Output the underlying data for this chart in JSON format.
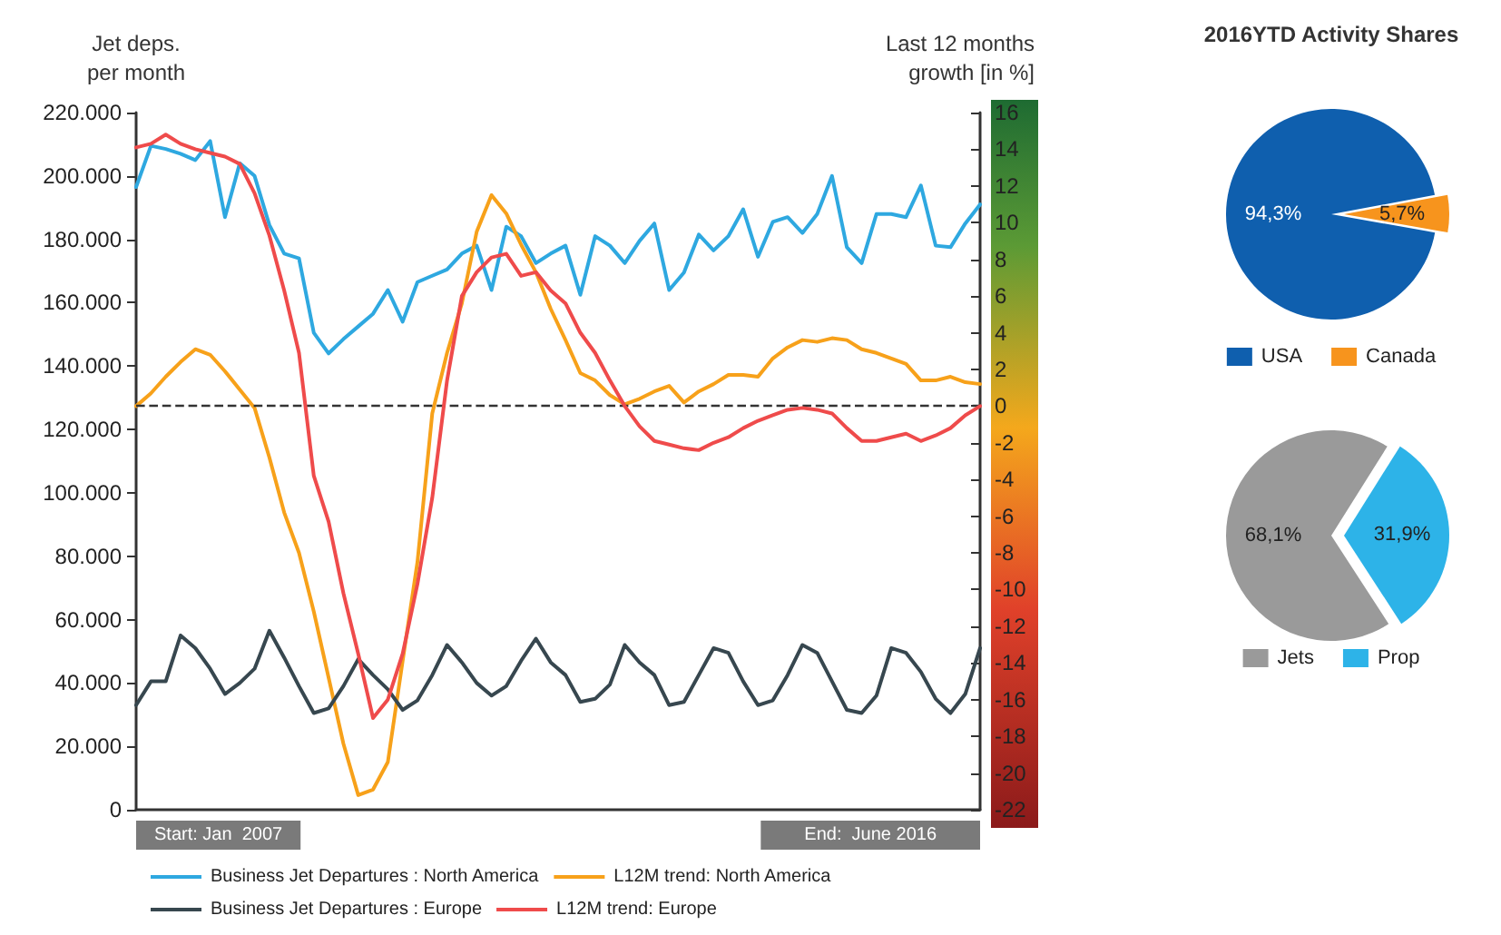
{
  "chart_data": [
    {
      "type": "line",
      "ylabel": "Jet deps.\nper month",
      "y2label": "Last 12 months\ngrowth [in %]",
      "categories": [
        null,
        null,
        null,
        null,
        null,
        null,
        null,
        null,
        null,
        null,
        null,
        null,
        null,
        null,
        null,
        null,
        null,
        null,
        null,
        null,
        null,
        null,
        null,
        null,
        null,
        null,
        null,
        null,
        null,
        null,
        null,
        null,
        null,
        null,
        null,
        null,
        null,
        null,
        null,
        null,
        null,
        null,
        null,
        null,
        null,
        null,
        null,
        null,
        null,
        null,
        null,
        null,
        null,
        null,
        null,
        null,
        null,
        null
      ],
      "series": [
        {
          "name": "Business Jet Departures : North America",
          "color": "#2ea8e0",
          "values": [
            196500,
            209500,
            208500,
            207000,
            205000,
            211000,
            187000,
            204000,
            200000,
            184500,
            175500,
            174000,
            150500,
            144000,
            148500,
            152500,
            156500,
            164000,
            154000,
            166500,
            168500,
            170500,
            175500,
            178000,
            164000,
            184000,
            181000,
            172500,
            175500,
            178000,
            162500,
            181000,
            178000,
            172500,
            179500,
            185000,
            164000,
            169500,
            181500,
            176500,
            181000,
            189500,
            174500,
            185500,
            187000,
            182000,
            188000,
            200000,
            177500,
            172500,
            188000,
            188000,
            187000,
            197000,
            178000,
            177500,
            185000,
            191000
          ]
        },
        {
          "name": "L12M trend: North America",
          "color": "#f7a11a",
          "axis": "y2",
          "values": [
            0,
            0.7,
            1.6,
            2.4,
            3.1,
            2.8,
            1.9,
            0.9,
            -0.1,
            -2.8,
            -5.8,
            -8,
            -11.2,
            -14.8,
            -18.4,
            -21.2,
            -20.9,
            -19.4,
            -13.9,
            -8.5,
            -0.4,
            2.9,
            5.6,
            9.5,
            11.5,
            10.5,
            8.8,
            7.3,
            5.3,
            3.6,
            1.8,
            1.4,
            0.6,
            0.1,
            0.4,
            0.8,
            1.1,
            0.2,
            0.8,
            1.2,
            1.7,
            1.7,
            1.6,
            2.6,
            3.2,
            3.6,
            3.5,
            3.7,
            3.6,
            3.1,
            2.9,
            2.6,
            2.3,
            1.4,
            1.4,
            1.6,
            1.3,
            1.2
          ]
        },
        {
          "name": "Business Jet Departures : Europe",
          "color": "#37474f",
          "values": [
            33000,
            40500,
            40500,
            55000,
            51000,
            44500,
            36500,
            40000,
            44500,
            56500,
            48000,
            39000,
            30500,
            32000,
            39000,
            47500,
            42500,
            38000,
            31500,
            34500,
            42500,
            52000,
            46500,
            40000,
            36000,
            39000,
            47000,
            54000,
            46500,
            42500,
            34000,
            35000,
            39500,
            52000,
            46500,
            42500,
            33000,
            34000,
            42500,
            51000,
            49500,
            40500,
            33000,
            34500,
            42500,
            52000,
            49500,
            40500,
            31500,
            30500,
            36000,
            51000,
            49500,
            43500,
            35000,
            30500,
            36500,
            51000
          ]
        },
        {
          "name": "L12M trend: Europe",
          "color": "#ef4b4b",
          "axis": "y2",
          "values": [
            14.1,
            14.3,
            14.8,
            14.3,
            14,
            13.8,
            13.6,
            13.2,
            11.6,
            9.3,
            6.3,
            2.9,
            -3.8,
            -6.3,
            -10.2,
            -13.5,
            -17,
            -16,
            -13.5,
            -9.7,
            -5,
            1.4,
            6,
            7.3,
            8.1,
            8.3,
            7.1,
            7.3,
            6.3,
            5.6,
            4,
            2.9,
            1.4,
            0,
            -1.1,
            -1.9,
            -2.1,
            -2.3,
            -2.4,
            -2,
            -1.7,
            -1.2,
            -0.8,
            -0.5,
            -0.2,
            -0.1,
            -0.2,
            -0.4,
            -1.2,
            -1.9,
            -1.9,
            -1.7,
            -1.5,
            -1.9,
            -1.6,
            -1.2,
            -0.5,
            0
          ]
        }
      ],
      "ylim": [
        0,
        220000
      ],
      "yticks": [
        {
          "value": 0,
          "label": "0"
        },
        {
          "value": 20000,
          "label": "20.000"
        },
        {
          "value": 40000,
          "label": "40.000"
        },
        {
          "value": 60000,
          "label": "60.000"
        },
        {
          "value": 80000,
          "label": "80.000"
        },
        {
          "value": 100000,
          "label": "100.000"
        },
        {
          "value": 120000,
          "label": "120.000"
        },
        {
          "value": 140000,
          "label": "140.000"
        },
        {
          "value": 160000,
          "label": "160.000"
        },
        {
          "value": 180000,
          "label": "180.000"
        },
        {
          "value": 200000,
          "label": "200.000"
        },
        {
          "value": 220000,
          "label": "220.000"
        }
      ],
      "y2lim": [
        -22,
        16
      ],
      "y2ticks": [
        -22,
        -20,
        -18,
        -16,
        -14,
        -12,
        -10,
        -8,
        -6,
        -4,
        -2,
        0,
        2,
        4,
        6,
        8,
        10,
        12,
        14,
        16
      ],
      "ref_lines": [
        {
          "axis": "y2",
          "value": 0,
          "color": "#333333",
          "line_style": "dashed"
        }
      ],
      "annotations": [
        "Start: Jan  2007",
        "End:  June 2016"
      ],
      "grid": false,
      "legend": "bottom",
      "marker": "none",
      "line_style": "solid"
    },
    {
      "type": "pie",
      "title": "2016YTD Activity Shares",
      "categories": [
        "USA",
        "Canada"
      ],
      "values": [
        94.3,
        5.7
      ],
      "colors": [
        "#0f5fae",
        "#f7941d"
      ],
      "value_labels": [
        "94,3%",
        "5,7%"
      ],
      "legend": "bottom"
    },
    {
      "type": "pie",
      "categories": [
        "Jets",
        "Prop"
      ],
      "values": [
        68.1,
        31.9
      ],
      "colors": [
        "#9a9a9a",
        "#2db3e8"
      ],
      "value_labels": [
        "68,1%",
        "31,9%"
      ],
      "legend": "bottom"
    }
  ]
}
